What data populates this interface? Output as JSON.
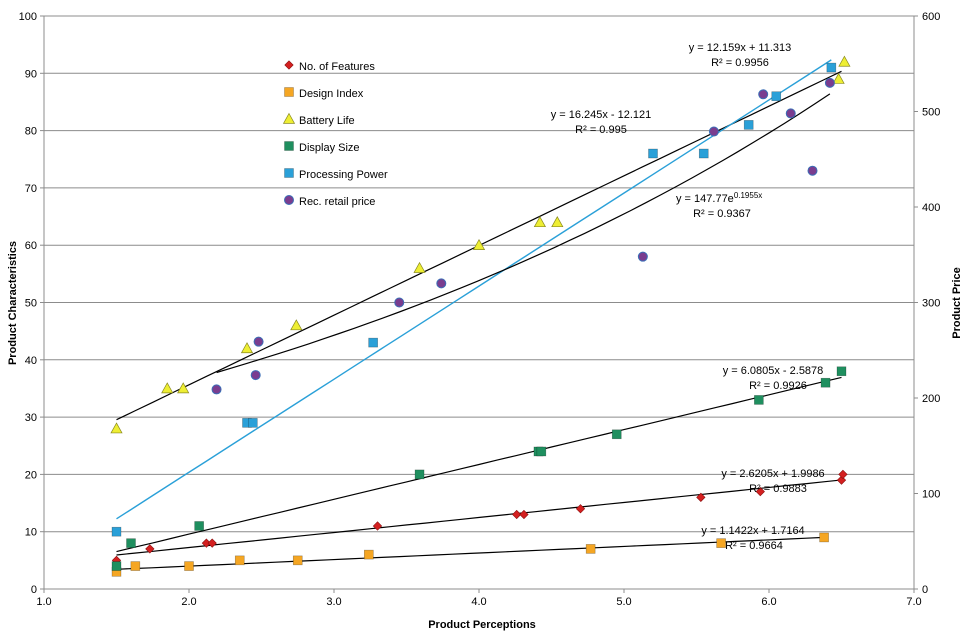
{
  "chart_data": {
    "type": "scatter",
    "xlabel": "Product Perceptions",
    "ylabel": "Product Characteristics",
    "y2label": "Product Price",
    "xlim": [
      1.0,
      7.0
    ],
    "ylim": [
      0,
      100
    ],
    "y2lim": [
      0,
      600
    ],
    "xticks": [
      "1.0",
      "2.0",
      "3.0",
      "4.0",
      "5.0",
      "6.0",
      "7.0"
    ],
    "yticks": [
      "0",
      "10",
      "20",
      "30",
      "40",
      "50",
      "60",
      "70",
      "80",
      "90",
      "100"
    ],
    "y2ticks": [
      "0",
      "100",
      "200",
      "300",
      "400",
      "500",
      "600"
    ],
    "grid": "horizontal",
    "legend_position": "upper-left",
    "series": [
      {
        "name": "No. of Features",
        "marker": "diamond",
        "color": "#d42020",
        "axis": "left",
        "points": [
          [
            1.5,
            5
          ],
          [
            1.73,
            7
          ],
          [
            2.12,
            8
          ],
          [
            2.16,
            8
          ],
          [
            3.3,
            11
          ],
          [
            4.26,
            13
          ],
          [
            4.31,
            13
          ],
          [
            4.7,
            14
          ],
          [
            5.53,
            16
          ],
          [
            5.94,
            17
          ],
          [
            6.5,
            19
          ],
          [
            6.51,
            20
          ]
        ]
      },
      {
        "name": "Design Index",
        "marker": "square",
        "color": "#f5a623",
        "axis": "left",
        "points": [
          [
            1.5,
            3
          ],
          [
            1.63,
            4
          ],
          [
            2.0,
            4
          ],
          [
            2.35,
            5
          ],
          [
            2.75,
            5
          ],
          [
            3.24,
            6
          ],
          [
            4.77,
            7
          ],
          [
            5.67,
            8
          ],
          [
            6.38,
            9
          ]
        ]
      },
      {
        "name": "Battery Life",
        "marker": "triangle",
        "color": "#eeee33",
        "axis": "left",
        "points": [
          [
            1.5,
            28
          ],
          [
            1.85,
            35
          ],
          [
            1.96,
            35
          ],
          [
            2.4,
            42
          ],
          [
            2.74,
            46
          ],
          [
            3.59,
            56
          ],
          [
            4.0,
            60
          ],
          [
            4.42,
            64
          ],
          [
            4.54,
            64
          ],
          [
            6.48,
            89
          ],
          [
            6.52,
            92
          ]
        ]
      },
      {
        "name": "Display Size",
        "marker": "square",
        "color": "#1f8f5f",
        "axis": "left",
        "points": [
          [
            1.5,
            4
          ],
          [
            1.6,
            8
          ],
          [
            2.07,
            11
          ],
          [
            3.59,
            20
          ],
          [
            4.41,
            24
          ],
          [
            4.43,
            24
          ],
          [
            4.95,
            27
          ],
          [
            5.93,
            33
          ],
          [
            6.39,
            36
          ],
          [
            6.5,
            38
          ]
        ]
      },
      {
        "name": "Processing Power",
        "marker": "square",
        "color": "#2aa0d8",
        "axis": "left",
        "points": [
          [
            1.5,
            10
          ],
          [
            2.4,
            29
          ],
          [
            2.44,
            29
          ],
          [
            3.27,
            43
          ],
          [
            5.2,
            76
          ],
          [
            5.55,
            76
          ],
          [
            5.86,
            81
          ],
          [
            6.05,
            86
          ],
          [
            6.43,
            91
          ]
        ]
      },
      {
        "name": "Rec. retail price",
        "marker": "circle",
        "color": "#7a3d8f",
        "axis": "right",
        "points": [
          [
            2.19,
            209
          ],
          [
            2.46,
            224
          ],
          [
            2.48,
            259
          ],
          [
            3.45,
            300
          ],
          [
            3.74,
            320
          ],
          [
            5.13,
            348
          ],
          [
            5.62,
            479
          ],
          [
            5.96,
            518
          ],
          [
            6.15,
            498
          ],
          [
            6.3,
            438
          ],
          [
            6.42,
            530
          ]
        ]
      }
    ],
    "trendlines": [
      {
        "series": "Battery Life",
        "equation": "y = 12.159x + 11.313",
        "r2": "R² = 0.9956",
        "color": "#000000"
      },
      {
        "series": "Processing Power",
        "equation": "y = 16.245x - 12.121",
        "r2": "R² = 0.995",
        "color": "#2aa0d8"
      },
      {
        "series": "Rec. retail price",
        "equation": "y = 147.77e",
        "exponent": "0.1955x",
        "r2": "R² = 0.9367",
        "color": "#000000"
      },
      {
        "series": "Display Size",
        "equation": "y = 6.0805x - 2.5878",
        "r2": "R² = 0.9926",
        "color": "#000000"
      },
      {
        "series": "No. of Features",
        "equation": "y = 2.6205x + 1.9986",
        "r2": "R² = 0.9883",
        "color": "#000000"
      },
      {
        "series": "Design Index",
        "equation": "y = 1.1422x + 1.7164",
        "r2": "R² = 0.9664",
        "color": "#000000"
      }
    ]
  }
}
